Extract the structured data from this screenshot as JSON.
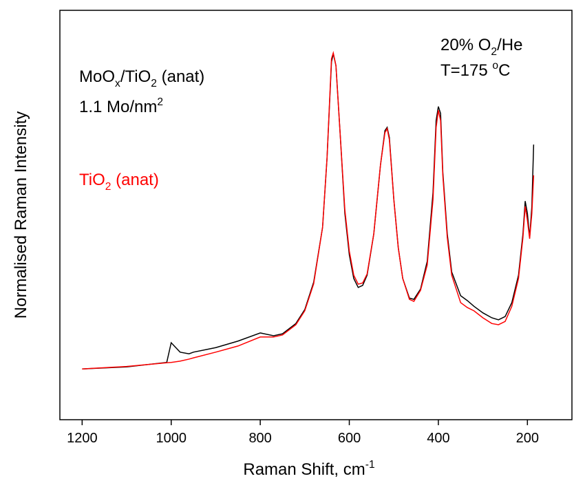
{
  "chart_data": {
    "type": "line",
    "x_label": {
      "parts": [
        {
          "text": "Raman Shift, cm"
        },
        {
          "text": "-1",
          "script": "super"
        }
      ]
    },
    "y_label": {
      "parts": [
        {
          "text": "Normalised Raman Intensity"
        }
      ]
    },
    "annotations": [
      {
        "parts": [
          {
            "text": "MoO"
          },
          {
            "text": "x",
            "script": "sub"
          },
          {
            "text": "/TiO"
          },
          {
            "text": "2",
            "script": "sub"
          },
          {
            "text": " (anat)"
          }
        ],
        "color": "#000000"
      },
      {
        "parts": [
          {
            "text": "1.1 Mo/nm"
          },
          {
            "text": "2",
            "script": "super"
          }
        ],
        "color": "#000000"
      },
      {
        "parts": [
          {
            "text": "TiO"
          },
          {
            "text": "2",
            "script": "sub"
          },
          {
            "text": " (anat)"
          }
        ],
        "color": "#ff0000"
      },
      {
        "parts": [
          {
            "text": "20% O"
          },
          {
            "text": "2",
            "script": "sub"
          },
          {
            "text": "/He"
          }
        ],
        "color": "#000000"
      },
      {
        "parts": [
          {
            "text": "T=175 "
          },
          {
            "text": "o",
            "script": "super"
          },
          {
            "text": "C"
          }
        ],
        "color": "#000000"
      }
    ],
    "x": [
      1200,
      1100,
      1010,
      1000,
      980,
      960,
      950,
      900,
      850,
      800,
      770,
      750,
      720,
      700,
      680,
      660,
      650,
      640,
      636,
      630,
      620,
      610,
      600,
      590,
      580,
      570,
      560,
      545,
      530,
      520,
      515,
      510,
      500,
      490,
      480,
      465,
      455,
      440,
      425,
      412,
      405,
      400,
      395,
      390,
      380,
      370,
      350,
      335,
      320,
      300,
      280,
      265,
      250,
      235,
      220,
      210,
      205,
      200,
      195,
      190,
      186
    ],
    "series": [
      {
        "name": "MoOx/TiO2 (anat)",
        "color": "#000000",
        "values": [
          12.4,
          12.9,
          14,
          18.8,
          16.5,
          16.1,
          16.5,
          17.6,
          19.2,
          21.2,
          20.5,
          21,
          23.5,
          26.9,
          33.6,
          47,
          63.9,
          87.4,
          89.4,
          86.5,
          68.9,
          50.4,
          40.3,
          34.5,
          32.3,
          32.8,
          35.3,
          45.4,
          62.2,
          70.6,
          71.4,
          68.9,
          53.8,
          42,
          34.5,
          29.7,
          29.4,
          31.9,
          38.7,
          55.5,
          73.1,
          76.5,
          74.8,
          60.5,
          45.4,
          36.1,
          30.3,
          29.1,
          27.7,
          26.1,
          24.9,
          24.4,
          25.2,
          28.6,
          35.3,
          45.4,
          53.4,
          50.4,
          44.5,
          52.1,
          67.2
        ]
      },
      {
        "name": "TiO2 (anat)",
        "color": "#ff0000",
        "values": [
          12.4,
          13,
          13.9,
          14,
          14.3,
          14.8,
          15.1,
          16.5,
          18,
          20.2,
          20.2,
          20.7,
          23.2,
          26.6,
          33.2,
          47,
          63.9,
          88.2,
          89.6,
          86.5,
          68.9,
          51.3,
          41.2,
          35.3,
          33.1,
          33.4,
          35.6,
          45.4,
          62.2,
          70.1,
          71.1,
          68.4,
          53.8,
          42,
          34.5,
          29.4,
          28.9,
          31.6,
          37.8,
          53.8,
          71.4,
          75.6,
          73.1,
          59.7,
          44.5,
          35.3,
          28.6,
          27.4,
          26.6,
          24.9,
          23.5,
          23.2,
          24,
          27.7,
          34.5,
          44.5,
          52.1,
          48.7,
          44.2,
          50.4,
          59.7
        ]
      }
    ],
    "xlim": [
      1250,
      100
    ],
    "ylim": [
      0,
      100
    ],
    "xticks": [
      1200,
      1000,
      800,
      600,
      400,
      200
    ]
  }
}
